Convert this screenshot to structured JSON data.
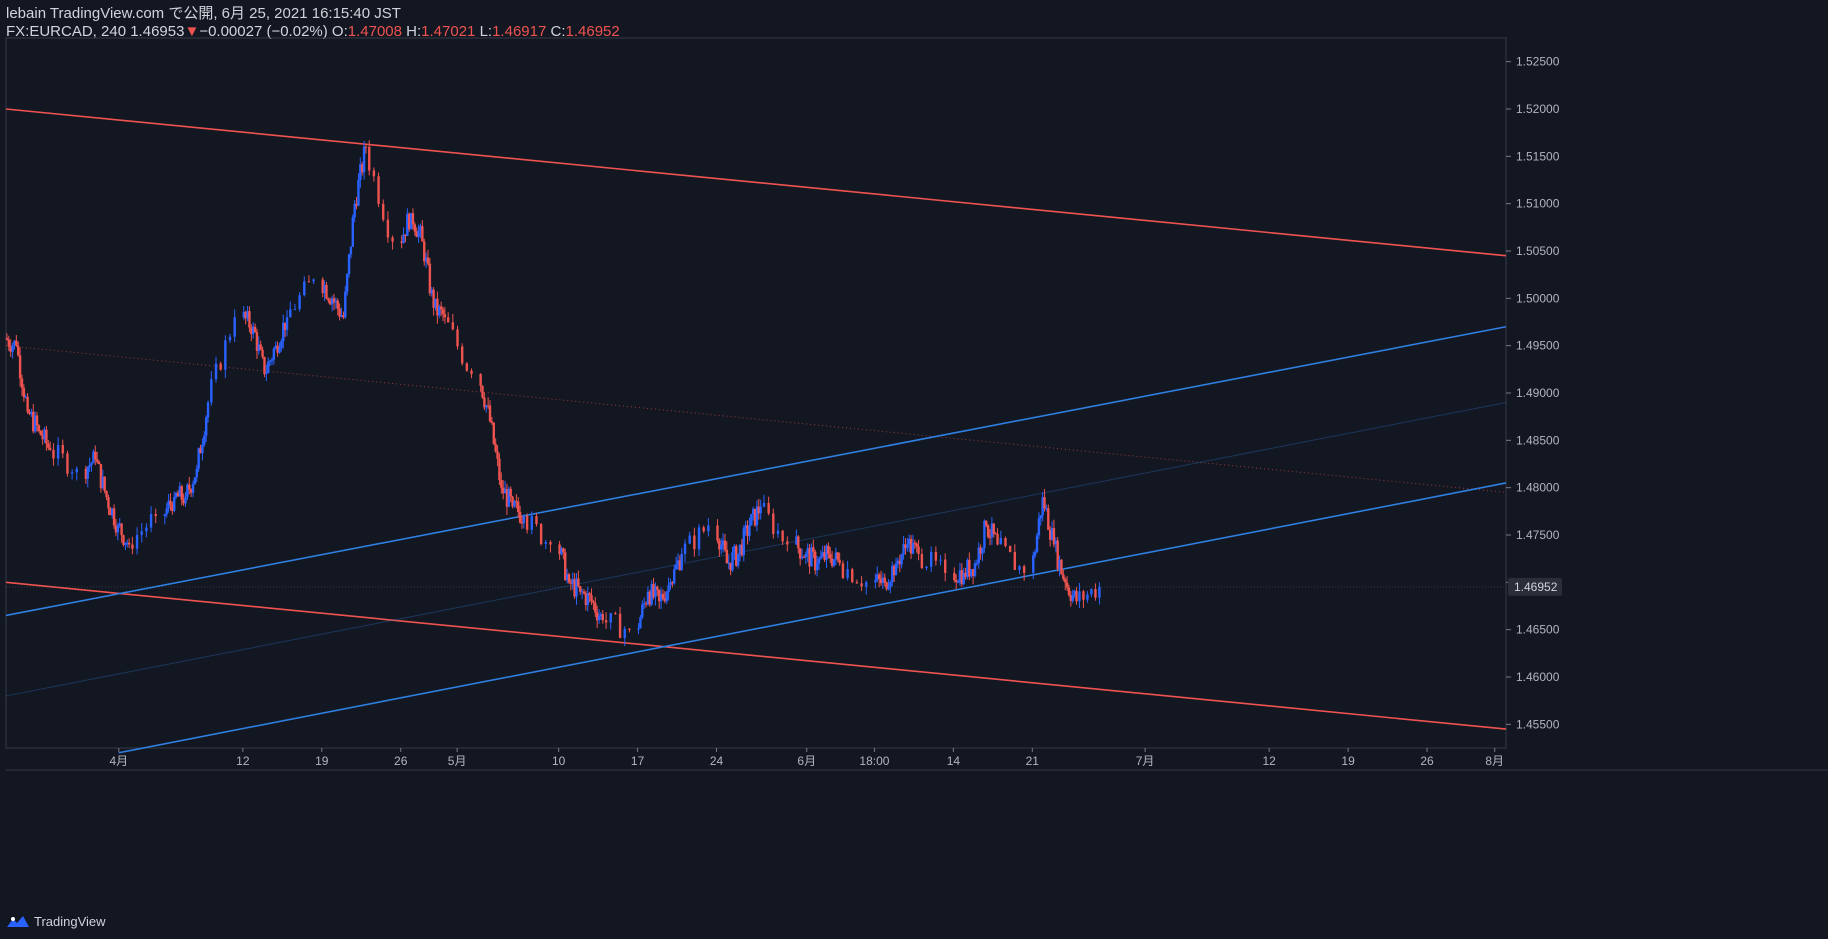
{
  "header": {
    "publish_line": "lebain TradingView.com で公開, 6月 25, 2021 16:15:40 JST",
    "symbol_interval": "FX:EURCAD, 240",
    "last_price": "1.46953",
    "change_arrow": "▼",
    "change": "−0.00027 (−0.02%)",
    "o_label": "O:",
    "o_value": "1.47008",
    "h_label": "H:",
    "h_value": "1.47021",
    "l_label": "L:",
    "l_value": "1.46917",
    "c_label": "C:",
    "c_value": "1.46952"
  },
  "footer": {
    "brand": "TradingView",
    "logo_icon": "tradingview-logo-icon"
  },
  "colors": {
    "up": "#2962ff",
    "down": "#ef5350",
    "blue_line": "#2f7fe0",
    "red_line": "#ef5350",
    "background": "#131722",
    "axis_text": "#b2b5be"
  },
  "chart_data": {
    "type": "candlestick",
    "symbol": "FX:EURCAD",
    "interval": "240",
    "ylim": [
      1.4525,
      1.5275
    ],
    "y_ticks": [
      "1.52500",
      "1.52000",
      "1.51500",
      "1.51000",
      "1.50500",
      "1.50000",
      "1.49500",
      "1.49000",
      "1.48500",
      "1.48000",
      "1.47500",
      "1.47000",
      "1.46500",
      "1.46000",
      "1.45500"
    ],
    "x_ticks": [
      {
        "label": "4月",
        "date": "2021-04-01"
      },
      {
        "label": "12",
        "date": "2021-04-12"
      },
      {
        "label": "19",
        "date": "2021-04-19"
      },
      {
        "label": "26",
        "date": "2021-04-26"
      },
      {
        "label": "5月",
        "date": "2021-05-01"
      },
      {
        "label": "10",
        "date": "2021-05-10"
      },
      {
        "label": "17",
        "date": "2021-05-17"
      },
      {
        "label": "24",
        "date": "2021-05-24"
      },
      {
        "label": "6月",
        "date": "2021-06-01"
      },
      {
        "label": "18:00",
        "date": "2021-06-07"
      },
      {
        "label": "14",
        "date": "2021-06-14"
      },
      {
        "label": "21",
        "date": "2021-06-21"
      },
      {
        "label": "7月",
        "date": "2021-07-01"
      },
      {
        "label": "12",
        "date": "2021-07-12"
      },
      {
        "label": "19",
        "date": "2021-07-19"
      },
      {
        "label": "26",
        "date": "2021-07-26"
      },
      {
        "label": "8月",
        "date": "2021-08-01"
      }
    ],
    "last_price_label": "1.46952",
    "closes": [
      [
        "2021-03-22",
        1.495
      ],
      [
        "2021-03-23",
        1.488
      ],
      [
        "2021-03-24",
        1.486
      ],
      [
        "2021-03-25",
        1.484
      ],
      [
        "2021-03-26",
        1.482
      ],
      [
        "2021-03-29",
        1.483
      ],
      [
        "2021-03-30",
        1.479
      ],
      [
        "2021-03-31",
        1.476
      ],
      [
        "2021-04-01",
        1.474
      ],
      [
        "2021-04-02",
        1.477
      ],
      [
        "2021-04-05",
        1.479
      ],
      [
        "2021-04-06",
        1.479
      ],
      [
        "2021-04-07",
        1.482
      ],
      [
        "2021-04-08",
        1.489
      ],
      [
        "2021-04-09",
        1.498
      ],
      [
        "2021-04-12",
        1.497
      ],
      [
        "2021-04-13",
        1.492
      ],
      [
        "2021-04-14",
        1.495
      ],
      [
        "2021-04-15",
        1.498
      ],
      [
        "2021-04-16",
        1.502
      ],
      [
        "2021-04-19",
        1.5
      ],
      [
        "2021-04-20",
        1.498
      ],
      [
        "2021-04-21",
        1.51
      ],
      [
        "2021-04-22",
        1.516
      ],
      [
        "2021-04-23",
        1.506
      ],
      [
        "2021-04-26",
        1.509
      ],
      [
        "2021-04-27",
        1.506
      ],
      [
        "2021-04-28",
        1.499
      ],
      [
        "2021-04-29",
        1.498
      ],
      [
        "2021-04-30",
        1.492
      ],
      [
        "2021-05-03",
        1.487
      ],
      [
        "2021-05-04",
        1.48
      ],
      [
        "2021-05-05",
        1.478
      ],
      [
        "2021-05-06",
        1.477
      ],
      [
        "2021-05-07",
        1.474
      ],
      [
        "2021-05-10",
        1.47
      ],
      [
        "2021-05-11",
        1.469
      ],
      [
        "2021-05-12",
        1.468
      ],
      [
        "2021-05-13",
        1.466
      ],
      [
        "2021-05-14",
        1.465
      ],
      [
        "2021-05-17",
        1.469
      ],
      [
        "2021-05-18",
        1.468
      ],
      [
        "2021-05-19",
        1.47
      ],
      [
        "2021-05-20",
        1.473
      ],
      [
        "2021-05-21",
        1.476
      ],
      [
        "2021-05-24",
        1.472
      ],
      [
        "2021-05-25",
        1.473
      ],
      [
        "2021-05-26",
        1.476
      ],
      [
        "2021-05-27",
        1.478
      ],
      [
        "2021-05-28",
        1.474
      ],
      [
        "2021-05-31",
        1.473
      ],
      [
        "2021-06-01",
        1.472
      ],
      [
        "2021-06-02",
        1.473
      ],
      [
        "2021-06-03",
        1.472
      ],
      [
        "2021-06-04",
        1.47
      ],
      [
        "2021-06-07",
        1.47
      ],
      [
        "2021-06-08",
        1.472
      ],
      [
        "2021-06-09",
        1.474
      ],
      [
        "2021-06-10",
        1.473
      ],
      [
        "2021-06-11",
        1.471
      ],
      [
        "2021-06-14",
        1.471
      ],
      [
        "2021-06-15",
        1.472
      ],
      [
        "2021-06-16",
        1.476
      ],
      [
        "2021-06-17",
        1.474
      ],
      [
        "2021-06-18",
        1.471
      ],
      [
        "2021-06-21",
        1.479
      ],
      [
        "2021-06-22",
        1.474
      ],
      [
        "2021-06-23",
        1.47
      ],
      [
        "2021-06-24",
        1.468
      ],
      [
        "2021-06-25",
        1.4695
      ]
    ],
    "trend_lines": [
      {
        "color": "red",
        "style": "solid",
        "from": [
          "2021-03-22",
          1.52
        ],
        "to": [
          "2021-08-02",
          1.5045
        ]
      },
      {
        "color": "red",
        "style": "solid",
        "from": [
          "2021-03-22",
          1.47
        ],
        "to": [
          "2021-08-02",
          1.4545
        ]
      },
      {
        "color": "red",
        "style": "dotted",
        "from": [
          "2021-03-22",
          1.495
        ],
        "to": [
          "2021-08-02",
          1.4795
        ]
      },
      {
        "color": "blue",
        "style": "solid",
        "from": [
          "2021-03-22",
          1.4665
        ],
        "to": [
          "2021-08-02",
          1.497
        ]
      },
      {
        "color": "blue",
        "style": "solid",
        "from": [
          "2021-04-01",
          1.452
        ],
        "to": [
          "2021-08-02",
          1.4805
        ]
      },
      {
        "color": "blue",
        "style": "faint",
        "from": [
          "2021-03-22",
          1.458
        ],
        "to": [
          "2021-08-02",
          1.489
        ]
      }
    ]
  }
}
